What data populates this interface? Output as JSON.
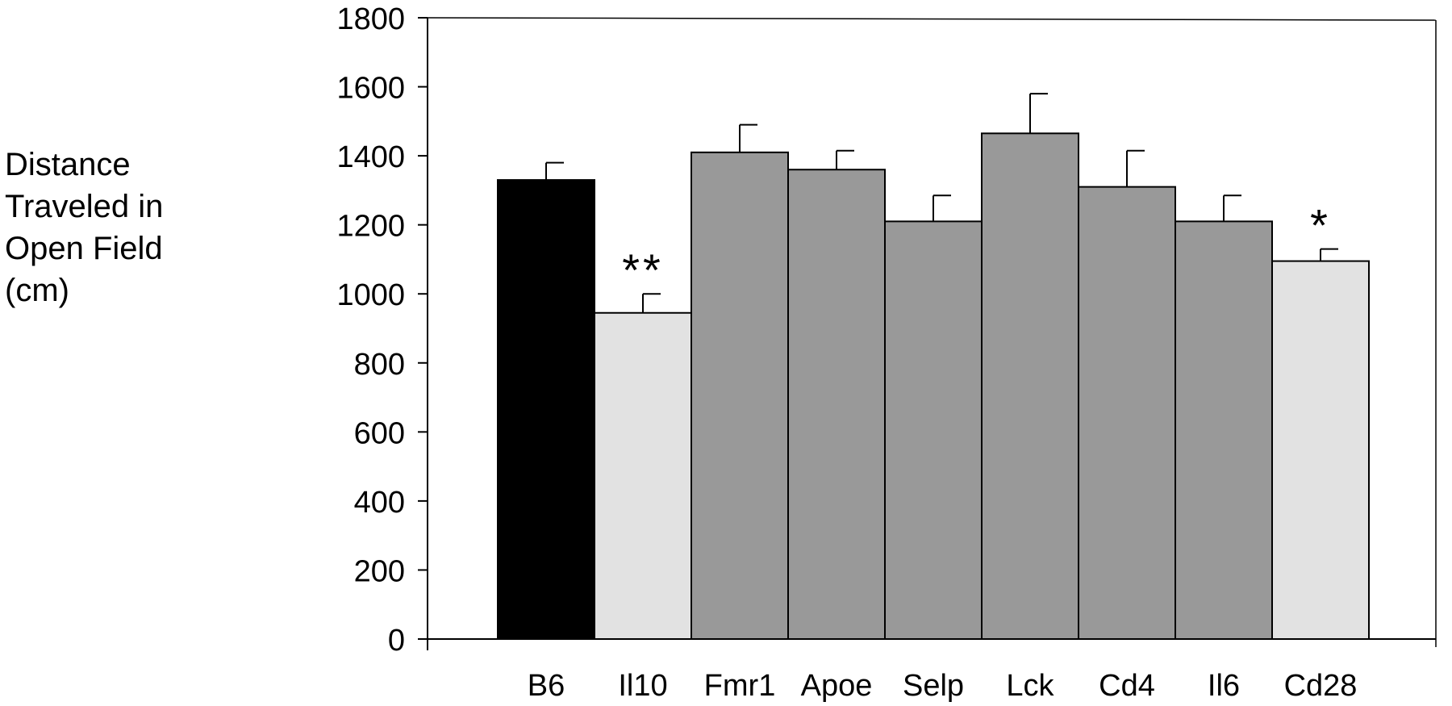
{
  "chart_data": {
    "type": "bar",
    "title": "",
    "ylabel_lines": [
      "Distance",
      "Traveled in",
      "Open Field",
      "(cm)"
    ],
    "xlabel": "",
    "categories": [
      "B6",
      "Il10",
      "Fmr1",
      "Apoe",
      "Selp",
      "Lck",
      "Cd4",
      "Il6",
      "Cd28"
    ],
    "values": [
      1330,
      945,
      1410,
      1360,
      1210,
      1465,
      1310,
      1210,
      1095
    ],
    "errors": [
      50,
      55,
      80,
      55,
      75,
      115,
      105,
      75,
      35
    ],
    "annotations": [
      "",
      "**",
      "",
      "",
      "",
      "",
      "",
      "",
      "*"
    ],
    "bar_colors": [
      "#000000",
      "#e2e2e2",
      "#999999",
      "#999999",
      "#999999",
      "#999999",
      "#999999",
      "#999999",
      "#e2e2e2"
    ],
    "ylim": [
      0,
      1800
    ],
    "yticks": [
      0,
      200,
      400,
      600,
      800,
      1000,
      1200,
      1400,
      1600,
      1800
    ],
    "grid": false,
    "legend": "none"
  }
}
